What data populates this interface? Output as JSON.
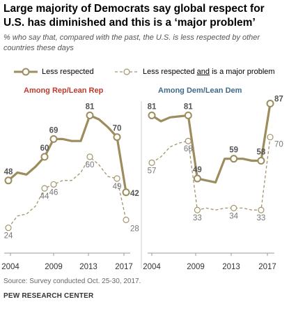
{
  "title": "Large majority of Democrats say global respect for U.S. has diminished and this is a ‘major problem’",
  "subtitle": "% who say that, compared with the past, the U.S. is less respected by other countries these days",
  "legend": {
    "series1": "Less respected",
    "series2_pre": "Less respected ",
    "series2_u": "and",
    "series2_post": " is a major problem"
  },
  "colors": {
    "solid": "#9c8c5e",
    "dashed": "#a3946a",
    "rep": "#c0392b",
    "dem": "#3f6a8a"
  },
  "source": "Source: Survey conducted Oct. 25-30, 2017.",
  "org": "PEW RESEARCH CENTER",
  "chart_data": [
    {
      "type": "line",
      "title": "Among Rep/Lean Rep",
      "xlim": [
        2004,
        2017
      ],
      "x_ticks": [
        "2004",
        "2009",
        "2013",
        "2017"
      ],
      "ylim": [
        20,
        90
      ],
      "series": [
        {
          "name": "Less respected",
          "style": "solid",
          "points": [
            [
              2004,
              48
            ],
            [
              2005,
              52
            ],
            [
              2006,
              51
            ],
            [
              2007,
              55
            ],
            [
              2008,
              60
            ],
            [
              2009,
              69
            ],
            [
              2010,
              69
            ],
            [
              2011,
              68
            ],
            [
              2012,
              68
            ],
            [
              2013,
              81
            ],
            [
              2014,
              79
            ],
            [
              2015,
              75
            ],
            [
              2016,
              70
            ],
            [
              2017,
              42
            ]
          ],
          "labels": [
            [
              2004,
              "48"
            ],
            [
              2008,
              "60"
            ],
            [
              2009,
              "69"
            ],
            [
              2013,
              "81"
            ],
            [
              2016,
              "70"
            ],
            [
              2017,
              "42"
            ]
          ]
        },
        {
          "name": "Less respected and is a major problem",
          "style": "dashed",
          "points": [
            [
              2004,
              24
            ],
            [
              2005,
              30
            ],
            [
              2006,
              31
            ],
            [
              2007,
              35
            ],
            [
              2008,
              44
            ],
            [
              2009,
              46
            ],
            [
              2010,
              48
            ],
            [
              2011,
              48
            ],
            [
              2012,
              52
            ],
            [
              2013,
              60
            ],
            [
              2014,
              56
            ],
            [
              2015,
              50
            ],
            [
              2016,
              49
            ],
            [
              2017,
              28
            ]
          ],
          "labels": [
            [
              2004,
              "24"
            ],
            [
              2008,
              "44"
            ],
            [
              2009,
              "46"
            ],
            [
              2013,
              "60"
            ],
            [
              2016,
              "49"
            ],
            [
              2017,
              "28"
            ]
          ]
        }
      ]
    },
    {
      "type": "line",
      "title": "Among Dem/Lean Dem",
      "xlim": [
        2004,
        2017
      ],
      "x_ticks": [
        "2004",
        "2009",
        "2013",
        "2017"
      ],
      "ylim": [
        20,
        90
      ],
      "series": [
        {
          "name": "Less respected",
          "style": "solid",
          "points": [
            [
              2004,
              81
            ],
            [
              2005,
              78
            ],
            [
              2006,
              80
            ],
            [
              2007,
              80.5
            ],
            [
              2008,
              81
            ],
            [
              2009,
              49
            ],
            [
              2010,
              48
            ],
            [
              2011,
              47
            ],
            [
              2012,
              59
            ],
            [
              2013,
              59
            ],
            [
              2014,
              59
            ],
            [
              2015,
              58
            ],
            [
              2016,
              58
            ],
            [
              2017,
              87
            ]
          ],
          "labels": [
            [
              2004,
              "81"
            ],
            [
              2008,
              "81"
            ],
            [
              2009,
              "49"
            ],
            [
              2013,
              "59"
            ],
            [
              2016,
              "58"
            ],
            [
              2017,
              "87"
            ]
          ]
        },
        {
          "name": "Less respected and is a major problem",
          "style": "dashed",
          "points": [
            [
              2004,
              57
            ],
            [
              2005,
              60
            ],
            [
              2006,
              65
            ],
            [
              2007,
              67
            ],
            [
              2008,
              68
            ],
            [
              2009,
              33
            ],
            [
              2010,
              34
            ],
            [
              2011,
              33
            ],
            [
              2012,
              34
            ],
            [
              2013,
              34
            ],
            [
              2014,
              34
            ],
            [
              2015,
              33
            ],
            [
              2016,
              33
            ],
            [
              2017,
              70
            ]
          ],
          "labels": [
            [
              2004,
              "57"
            ],
            [
              2008,
              "68"
            ],
            [
              2009,
              "33"
            ],
            [
              2013,
              "34"
            ],
            [
              2016,
              "33"
            ],
            [
              2017,
              "70"
            ]
          ]
        }
      ]
    }
  ]
}
